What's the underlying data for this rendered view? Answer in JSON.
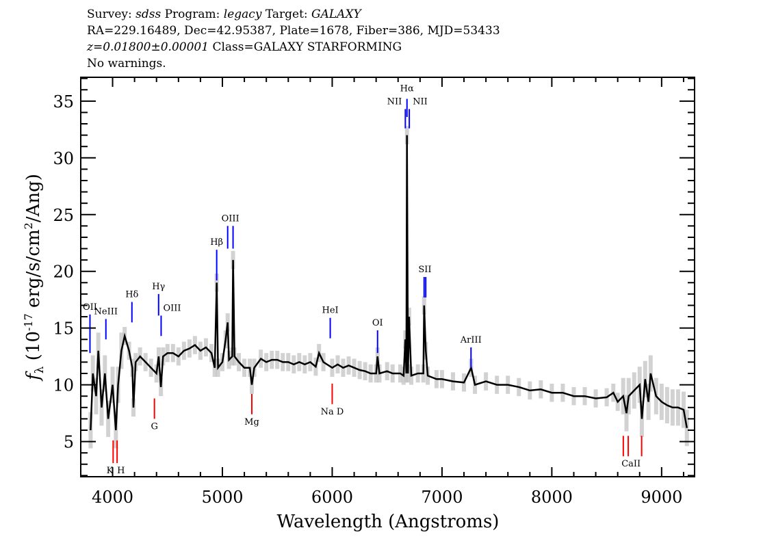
{
  "header": {
    "line1": {
      "survey_label": "Survey: ",
      "survey": "sdss",
      "program_label": " Program: ",
      "program": "legacy",
      "target_label": " Target: ",
      "target": "GALAXY"
    },
    "line2": "RA=229.16489, Dec=42.95387, Plate=1678, Fiber=386, MJD=53433",
    "line3": {
      "redshift": "z=0.01800±0.00001",
      "class": " Class=GALAXY STARFORMING"
    },
    "line4": "No warnings."
  },
  "chart_data": {
    "type": "line",
    "xlabel": "Wavelength (Angstroms)",
    "ylabel": {
      "main": "f",
      "sub": "λ",
      "pre": " (10",
      "exp": "-17",
      "mid": " erg/s/cm",
      "exp2": "2",
      "post": "/Ang)"
    },
    "xlim": [
      3710,
      9300
    ],
    "ylim": [
      1.9,
      37.1
    ],
    "xticks": [
      "4000",
      "5000",
      "6000",
      "7000",
      "8000",
      "9000"
    ],
    "yticks": [
      "5",
      "10",
      "15",
      "20",
      "25",
      "30",
      "35"
    ],
    "grid": false,
    "colors": {
      "flux": "#000000",
      "error": "#bfbfbf",
      "emission": "#0000ff",
      "absorption": "#ff0000"
    },
    "flux_err_typical": 0.8,
    "x": [
      3800,
      3820,
      3850,
      3870,
      3900,
      3930,
      3960,
      4000,
      4030,
      4050,
      4080,
      4110,
      4150,
      4180,
      4190,
      4210,
      4250,
      4300,
      4350,
      4400,
      4420,
      4440,
      4460,
      4500,
      4550,
      4600,
      4650,
      4700,
      4750,
      4800,
      4850,
      4900,
      4930,
      4948,
      4960,
      5000,
      5030,
      5048,
      5060,
      5090,
      5097,
      5110,
      5150,
      5200,
      5250,
      5268,
      5290,
      5350,
      5400,
      5450,
      5500,
      5550,
      5600,
      5650,
      5700,
      5750,
      5800,
      5850,
      5880,
      5920,
      6000,
      6050,
      6100,
      6150,
      6200,
      6250,
      6300,
      6350,
      6400,
      6413,
      6430,
      6500,
      6550,
      6620,
      6650,
      6666,
      6675,
      6681,
      6690,
      6700,
      6720,
      6780,
      6830,
      6837,
      6852,
      6870,
      6950,
      7000,
      7100,
      7200,
      7265,
      7300,
      7400,
      7500,
      7600,
      7700,
      7800,
      7900,
      8000,
      8100,
      8200,
      8300,
      8400,
      8500,
      8560,
      8600,
      8650,
      8680,
      8700,
      8750,
      8800,
      8820,
      8850,
      8880,
      8900,
      8950,
      9000,
      9050,
      9100,
      9150,
      9200,
      9230
    ],
    "y": [
      6,
      11,
      9,
      13,
      8,
      11,
      7,
      10,
      6,
      10,
      13,
      14.3,
      13,
      11.5,
      8,
      12,
      12.5,
      12,
      11.5,
      11,
      12.5,
      9.8,
      12.5,
      12.8,
      12.8,
      12.5,
      13,
      13.2,
      13.5,
      13,
      13.3,
      12.8,
      11.5,
      19,
      11.5,
      12,
      14,
      15.5,
      12.2,
      12.5,
      21,
      12.5,
      12,
      11.5,
      11.5,
      10,
      11.5,
      12.3,
      12,
      12.2,
      12.2,
      12,
      12,
      11.8,
      12,
      11.8,
      12,
      11.6,
      12.8,
      12,
      11.5,
      11.8,
      11.5,
      11.7,
      11.5,
      11.3,
      11.2,
      11,
      11,
      12.5,
      11,
      11.2,
      11,
      11,
      10.8,
      14,
      11,
      32,
      11,
      16,
      10.8,
      11,
      11,
      17,
      13,
      10.8,
      10.5,
      10.5,
      10.3,
      10.2,
      11.5,
      10,
      10.3,
      10,
      10,
      9.8,
      9.5,
      9.6,
      9.3,
      9.3,
      9,
      9,
      8.8,
      8.9,
      9.3,
      8.5,
      9,
      7.5,
      9,
      9.5,
      10,
      7,
      10.5,
      8.5,
      11,
      9,
      8.5,
      8.2,
      8,
      8,
      7.8,
      6.2
    ],
    "line_markers": [
      {
        "label": "OII",
        "wavelength": [
          3794
        ],
        "kind": "emission",
        "top": 16.2,
        "bottom": 12.8
      },
      {
        "label": "NeIII",
        "wavelength": [
          3939
        ],
        "kind": "emission",
        "top": 15.8,
        "bottom": 14.0
      },
      {
        "label": "Hδ",
        "wavelength": [
          4176
        ],
        "kind": "emission",
        "top": 17.3,
        "bottom": 15.5
      },
      {
        "label": "Hγ",
        "wavelength": [
          4419
        ],
        "kind": "emission",
        "top": 18.0,
        "bottom": 16.1
      },
      {
        "label": "OIII",
        "wavelength": [
          4442
        ],
        "kind": "emission",
        "top": 16.1,
        "bottom": 14.3
      },
      {
        "label": "Hβ",
        "wavelength": [
          4948
        ],
        "kind": "emission",
        "top": 21.9,
        "bottom": 19.2
      },
      {
        "label": "OIII",
        "wavelength": [
          5048,
          5097
        ],
        "kind": "emission",
        "top": 24.0,
        "bottom": 22.0
      },
      {
        "label": "HeI",
        "wavelength": [
          5982
        ],
        "kind": "emission",
        "top": 15.9,
        "bottom": 14.1
      },
      {
        "label": "OI",
        "wavelength": [
          6413
        ],
        "kind": "emission",
        "top": 14.8,
        "bottom": 12.8
      },
      {
        "label": "NII",
        "wavelength": [
          6666
        ],
        "kind": "emission",
        "top": 34.3,
        "bottom": 32.6
      },
      {
        "label": "Hα",
        "wavelength": [
          6681
        ],
        "kind": "emission",
        "top": 35.2,
        "bottom": 33.6
      },
      {
        "label": "NII",
        "wavelength": [
          6702
        ],
        "kind": "emission",
        "top": 34.3,
        "bottom": 32.6
      },
      {
        "label": "SII",
        "wavelength": [
          6837,
          6852
        ],
        "kind": "emission",
        "top": 19.5,
        "bottom": 17.7
      },
      {
        "label": "ArIII",
        "wavelength": [
          7264
        ],
        "kind": "emission",
        "top": 13.3,
        "bottom": 11.5
      },
      {
        "label": "K",
        "wavelength": [
          4005
        ],
        "kind": "absorption",
        "top": 5.1,
        "bottom": 3.1
      },
      {
        "label": "H",
        "wavelength": [
          4041
        ],
        "kind": "absorption",
        "top": 5.1,
        "bottom": 3.1
      },
      {
        "label": "G",
        "wavelength": [
          4381
        ],
        "kind": "absorption",
        "top": 8.8,
        "bottom": 7.0
      },
      {
        "label": "Mg",
        "wavelength": [
          5268
        ],
        "kind": "absorption",
        "top": 9.2,
        "bottom": 7.4
      },
      {
        "label": "Na D",
        "wavelength": [
          6000
        ],
        "kind": "absorption",
        "top": 10.1,
        "bottom": 8.3
      },
      {
        "label": "CaII",
        "wavelength": [
          8651,
          8696,
          8818
        ],
        "kind": "absorption",
        "top": 5.5,
        "bottom": 3.7
      }
    ]
  }
}
